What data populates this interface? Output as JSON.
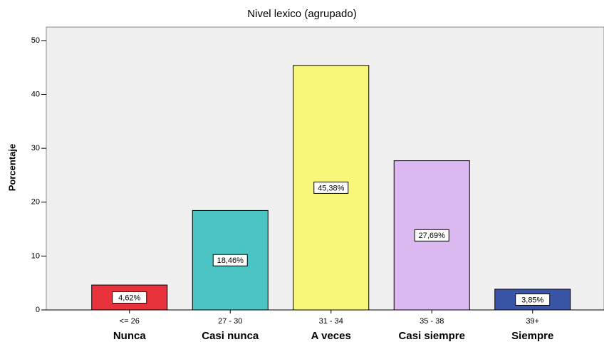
{
  "chart_data": {
    "type": "bar",
    "title": "Nivel lexico (agrupado)",
    "y_label": "Porcentaje",
    "categories": [
      "<= 26",
      "27 - 30",
      "31 - 34",
      "35 - 38",
      "39+"
    ],
    "category_descriptions": [
      "Nunca",
      "Casi nunca",
      "A veces",
      "Casi siempre",
      "Siempre"
    ],
    "values": [
      4.62,
      18.46,
      45.38,
      27.69,
      3.85
    ],
    "value_labels": [
      "4,62%",
      "18,46%",
      "45,38%",
      "27,69%",
      "3,85%"
    ],
    "colors": [
      "#e8333c",
      "#4cc4c4",
      "#f9f77a",
      "#dbb9f0",
      "#3a54a8"
    ],
    "ylim": [
      0,
      52.5
    ],
    "yticks": [
      0,
      10,
      20,
      30,
      40,
      50
    ]
  }
}
